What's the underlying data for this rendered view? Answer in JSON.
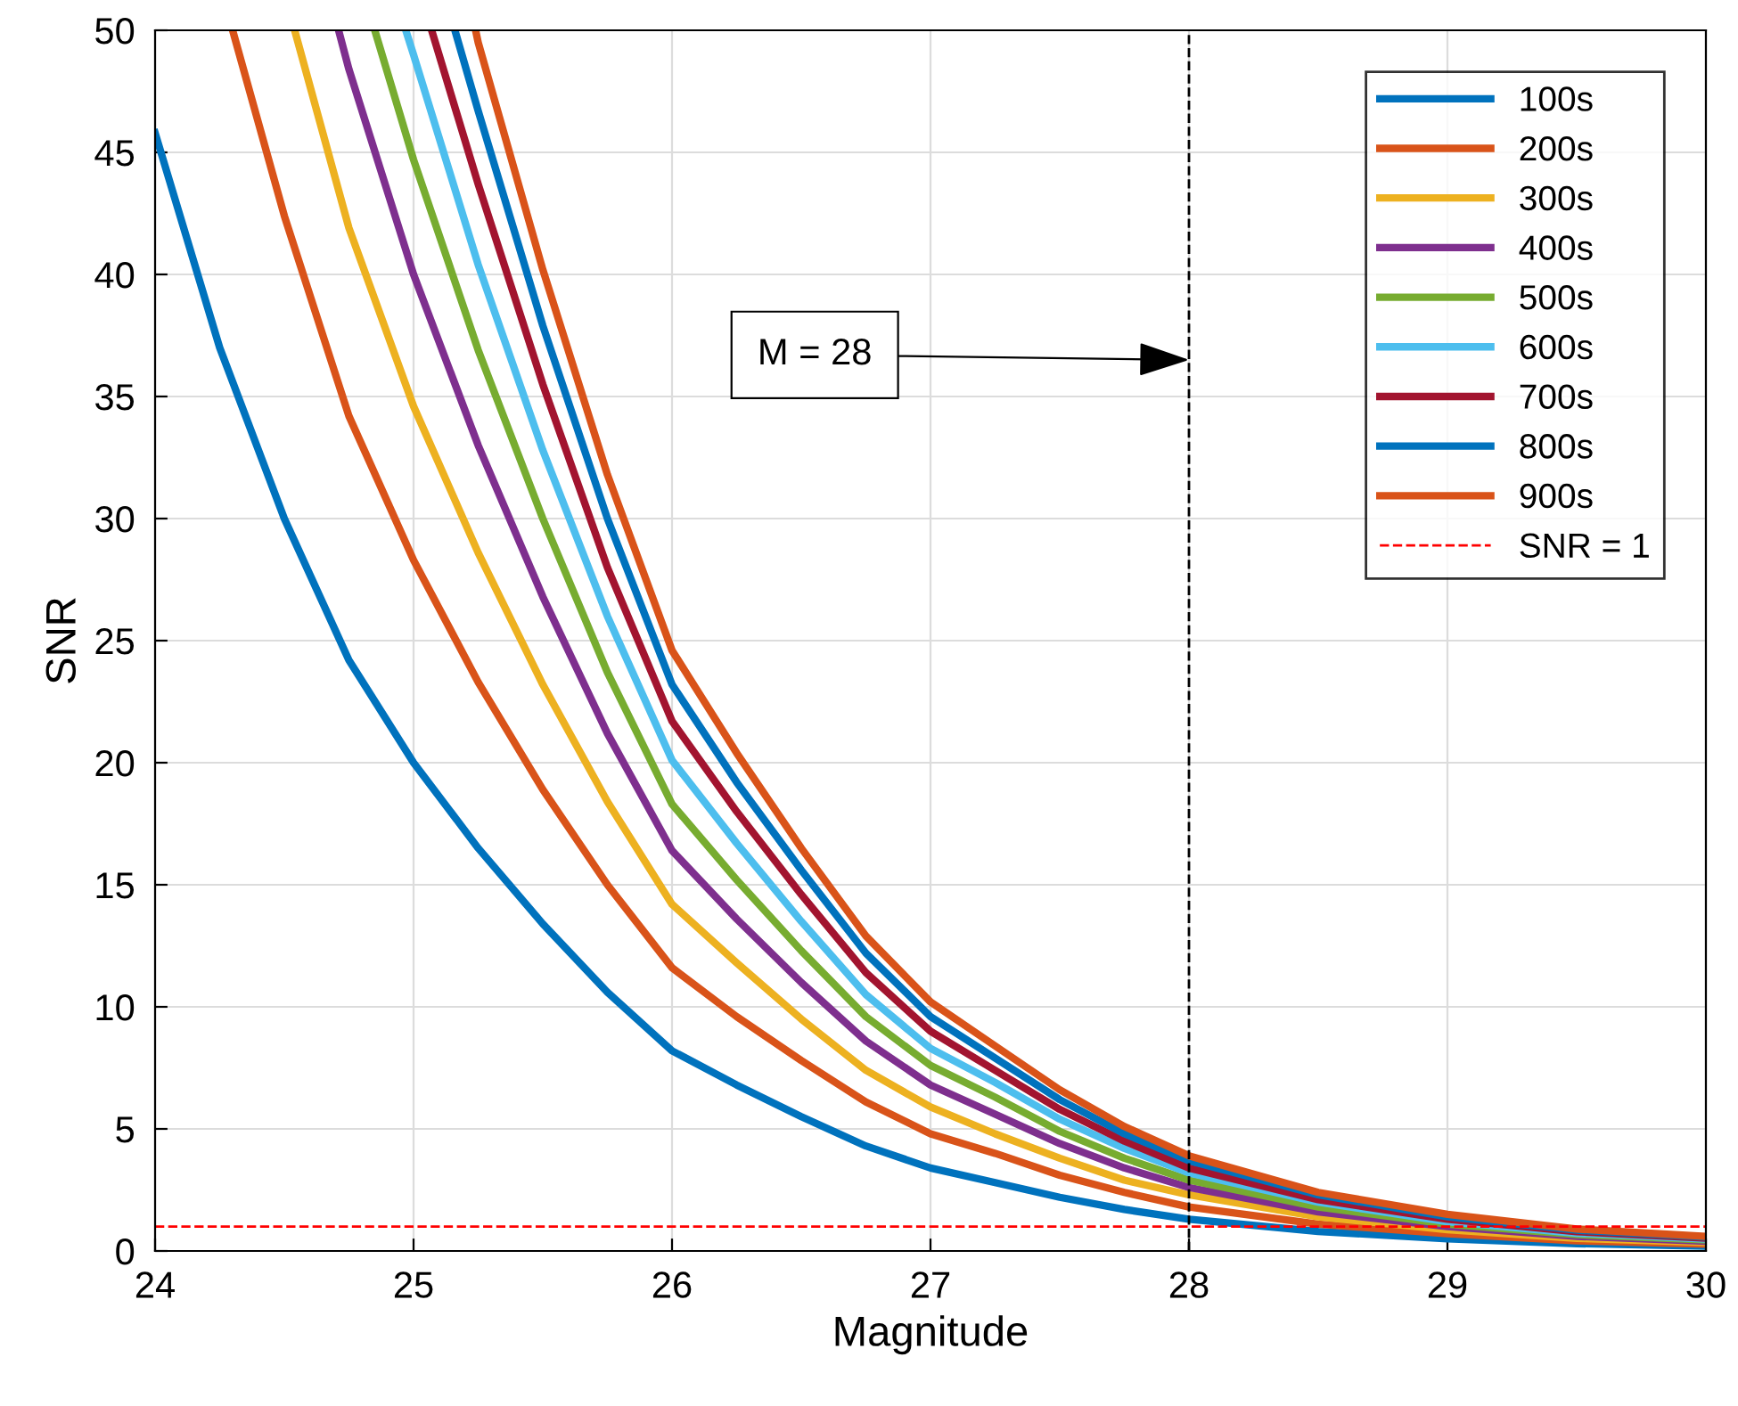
{
  "chart_data": {
    "type": "line",
    "xlabel": "Magnitude",
    "ylabel": "SNR",
    "xlim": [
      24,
      30
    ],
    "ylim": [
      0,
      50
    ],
    "xticks": [
      24,
      25,
      26,
      27,
      28,
      29,
      30
    ],
    "yticks": [
      0,
      5,
      10,
      15,
      20,
      25,
      30,
      35,
      40,
      45,
      50
    ],
    "grid": true,
    "legend": "top right",
    "line_style": "solid",
    "marker": "none",
    "series": [
      {
        "name": "100s",
        "color": "#0072bd",
        "x": [
          24,
          24.25,
          24.5,
          24.75,
          25,
          25.25,
          25.5,
          25.75,
          26,
          26.25,
          26.5,
          26.75,
          27,
          27.25,
          27.5,
          27.75,
          28,
          28.5,
          29,
          29.5,
          30
        ],
        "values": [
          45.8,
          37,
          30,
          24.2,
          20,
          16.5,
          13.4,
          10.6,
          8.2,
          6.8,
          5.5,
          4.3,
          3.4,
          2.8,
          2.2,
          1.7,
          1.3,
          0.8,
          0.5,
          0.3,
          0.2
        ]
      },
      {
        "name": "200s",
        "color": "#d95319",
        "x": [
          24.3,
          24.5,
          24.75,
          25,
          25.25,
          25.5,
          25.75,
          26,
          26.25,
          26.5,
          26.75,
          27,
          27.25,
          27.5,
          27.75,
          28,
          28.5,
          29,
          29.5,
          30
        ],
        "values": [
          50,
          42.4,
          34.2,
          28.3,
          23.3,
          18.9,
          15.0,
          11.6,
          9.6,
          7.8,
          6.1,
          4.8,
          4.0,
          3.1,
          2.4,
          1.8,
          1.1,
          0.71,
          0.42,
          0.28
        ]
      },
      {
        "name": "300s",
        "color": "#edb120",
        "x": [
          24.54,
          24.75,
          25,
          25.25,
          25.5,
          25.75,
          26,
          26.25,
          26.5,
          26.75,
          27,
          27.25,
          27.5,
          27.75,
          28,
          28.5,
          29,
          29.5,
          30
        ],
        "values": [
          50,
          41.9,
          34.6,
          28.6,
          23.2,
          18.4,
          14.2,
          11.8,
          9.5,
          7.4,
          5.9,
          4.8,
          3.8,
          2.9,
          2.3,
          1.4,
          0.87,
          0.52,
          0.35
        ]
      },
      {
        "name": "400s",
        "color": "#7e2f8e",
        "x": [
          24.71,
          24.75,
          25,
          25.25,
          25.5,
          25.75,
          26,
          26.25,
          26.5,
          26.75,
          27,
          27.25,
          27.5,
          27.75,
          28,
          28.5,
          29,
          29.5,
          30
        ],
        "values": [
          50,
          48.4,
          40,
          33,
          26.8,
          21.2,
          16.4,
          13.6,
          11,
          8.6,
          6.8,
          5.6,
          4.4,
          3.4,
          2.6,
          1.6,
          1.0,
          0.6,
          0.4
        ]
      },
      {
        "name": "500s",
        "color": "#77ac30",
        "x": [
          24.85,
          25,
          25.25,
          25.5,
          25.75,
          26,
          26.25,
          26.5,
          26.75,
          27,
          27.25,
          27.5,
          27.75,
          28,
          28.5,
          29,
          29.5,
          30
        ],
        "values": [
          50,
          44.7,
          36.9,
          30.0,
          23.7,
          18.3,
          15.2,
          12.3,
          9.6,
          7.6,
          6.3,
          4.9,
          3.8,
          2.9,
          1.8,
          1.1,
          0.67,
          0.45
        ]
      },
      {
        "name": "600s",
        "color": "#4dbeee",
        "x": [
          24.97,
          25,
          25.25,
          25.5,
          25.75,
          26,
          26.25,
          26.5,
          26.75,
          27,
          27.25,
          27.5,
          27.75,
          28,
          28.5,
          29,
          29.5,
          30
        ],
        "values": [
          50,
          49.0,
          40.4,
          32.8,
          26.0,
          20.1,
          16.7,
          13.5,
          10.5,
          8.3,
          6.9,
          5.4,
          4.2,
          3.2,
          2.0,
          1.2,
          0.73,
          0.49
        ]
      },
      {
        "name": "700s",
        "color": "#a2142f",
        "x": [
          25.07,
          25.25,
          25.5,
          25.75,
          26,
          26.25,
          26.5,
          26.75,
          27,
          27.25,
          27.5,
          27.75,
          28,
          28.5,
          29,
          29.5,
          30
        ],
        "values": [
          50,
          43.7,
          35.5,
          28.0,
          21.7,
          18.0,
          14.6,
          11.4,
          9.0,
          7.4,
          5.8,
          4.5,
          3.4,
          2.1,
          1.3,
          0.79,
          0.53
        ]
      },
      {
        "name": "800s",
        "color": "#0072bd",
        "x": [
          25.16,
          25.25,
          25.5,
          25.75,
          26,
          26.25,
          26.5,
          26.75,
          27,
          27.25,
          27.5,
          27.75,
          28,
          28.5,
          29,
          29.5,
          30
        ],
        "values": [
          50,
          46.7,
          37.9,
          30.0,
          23.2,
          19.2,
          15.6,
          12.2,
          9.6,
          7.9,
          6.2,
          4.8,
          3.7,
          2.3,
          1.4,
          0.85,
          0.57
        ]
      },
      {
        "name": "900s",
        "color": "#d95319",
        "x": [
          25.24,
          25.25,
          25.5,
          25.75,
          26,
          26.25,
          26.5,
          26.75,
          27,
          27.25,
          27.5,
          27.75,
          28,
          28.5,
          29,
          29.5,
          30
        ],
        "values": [
          50,
          49.5,
          40.2,
          31.8,
          24.6,
          20.4,
          16.5,
          12.9,
          10.2,
          8.4,
          6.6,
          5.1,
          3.9,
          2.4,
          1.5,
          0.9,
          0.6
        ]
      }
    ],
    "ref_lines": [
      {
        "axis": "y",
        "value": 1,
        "label": "SNR = 1",
        "color": "#ff0000",
        "line_style": "dashed"
      },
      {
        "axis": "x",
        "value": 28,
        "label": null,
        "color": "#000000",
        "line_style": "dashed"
      }
    ],
    "annotations": [
      {
        "text": "M = 28",
        "x": 28,
        "y": 36.5
      }
    ]
  }
}
